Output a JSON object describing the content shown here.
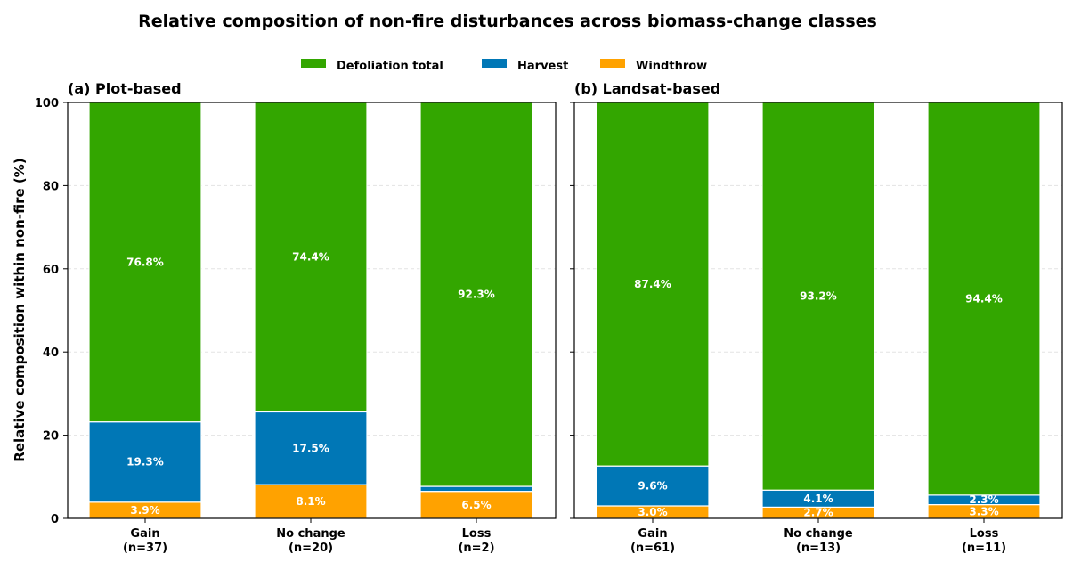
{
  "title": "Relative composition of non-fire disturbances across biomass-change classes",
  "legend": [
    {
      "label": "Defoliation total",
      "color": "#33a600"
    },
    {
      "label": "Harvest",
      "color": "#0077b6"
    },
    {
      "label": "Windthrow",
      "color": "#ffa200"
    }
  ],
  "ylabel": "Relative composition within non-fire (%)",
  "yticks": [
    "0",
    "20",
    "40",
    "60",
    "80",
    "100"
  ],
  "chart_data": [
    {
      "type": "bar",
      "stacked": true,
      "title": "(a) Plot-based",
      "categories": [
        "Gain",
        "No change",
        "Loss"
      ],
      "category_sublabels": [
        "(n=37)",
        "(n=20)",
        "(n=2)"
      ],
      "ylabel": "Relative composition within non-fire (%)",
      "ylim": [
        0,
        100
      ],
      "series": [
        {
          "name": "Windthrow",
          "values": [
            3.9,
            8.1,
            6.5
          ],
          "labels": [
            "3.9%",
            "8.1%",
            "6.5%"
          ]
        },
        {
          "name": "Harvest",
          "values": [
            19.3,
            17.5,
            1.2
          ],
          "labels": [
            "19.3%",
            "17.5%",
            ""
          ]
        },
        {
          "name": "Defoliation total",
          "values": [
            76.8,
            74.4,
            92.3
          ],
          "labels": [
            "76.8%",
            "74.4%",
            "92.3%"
          ]
        }
      ]
    },
    {
      "type": "bar",
      "stacked": true,
      "title": "(b) Landsat-based",
      "categories": [
        "Gain",
        "No change",
        "Loss"
      ],
      "category_sublabels": [
        "(n=61)",
        "(n=13)",
        "(n=11)"
      ],
      "ylim": [
        0,
        100
      ],
      "series": [
        {
          "name": "Windthrow",
          "values": [
            3.0,
            2.7,
            3.3
          ],
          "labels": [
            "3.0%",
            "2.7%",
            "3.3%"
          ]
        },
        {
          "name": "Harvest",
          "values": [
            9.6,
            4.1,
            2.3
          ],
          "labels": [
            "9.6%",
            "4.1%",
            "2.3%"
          ]
        },
        {
          "name": "Defoliation total",
          "values": [
            87.4,
            93.2,
            94.4
          ],
          "labels": [
            "87.4%",
            "93.2%",
            "94.4%"
          ]
        }
      ]
    }
  ]
}
